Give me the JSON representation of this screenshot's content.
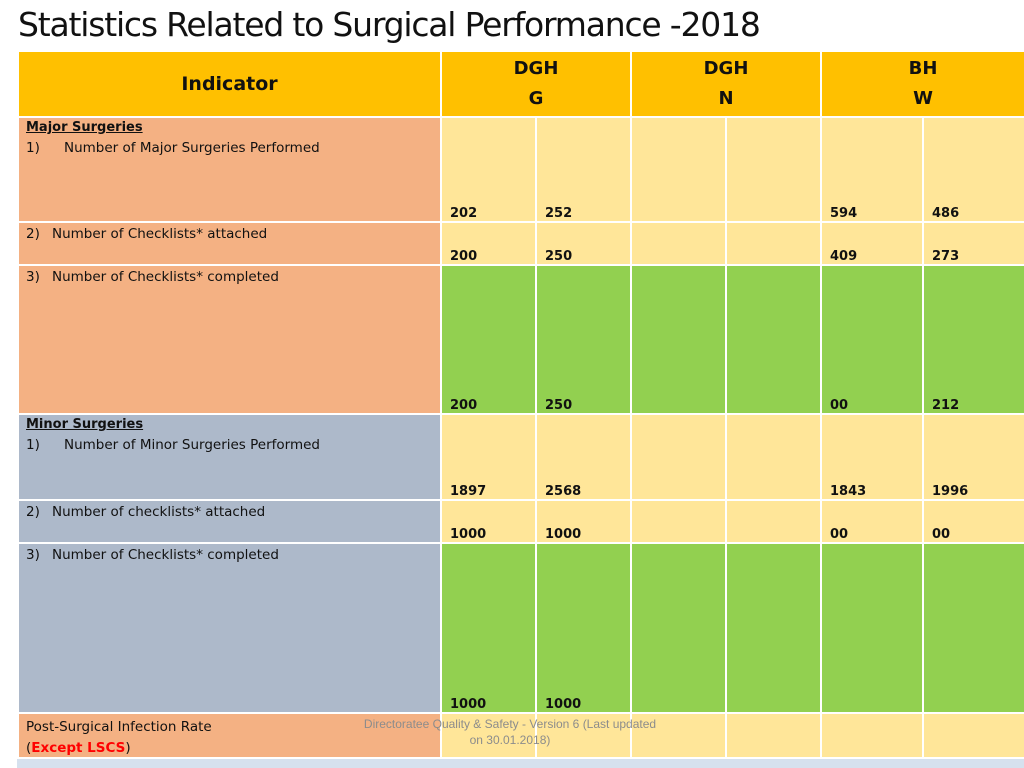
{
  "title": "Statistics Related to Surgical Performance -2018",
  "table": {
    "indicator_header": "Indicator",
    "columns": [
      {
        "line1": "DGH",
        "line2": "G"
      },
      {
        "line1": "DGH",
        "line2": "N"
      },
      {
        "line1": "BH",
        "line2": "W"
      }
    ],
    "major": {
      "section_title": "Major Surgeries",
      "row1": {
        "num": "1)",
        "label": "Number of Major Surgeries Performed",
        "values": [
          "202",
          "252",
          "",
          "",
          "594",
          "486"
        ]
      },
      "row2": {
        "num": "2)",
        "label": "Number of Checklists* attached",
        "values": [
          "200",
          "250",
          "",
          "",
          "409",
          "273"
        ]
      },
      "row3": {
        "num": "3)",
        "label": "Number of Checklists* completed",
        "values": [
          "200",
          "250",
          "",
          "",
          "00",
          "212"
        ]
      }
    },
    "minor": {
      "section_title": "Minor Surgeries",
      "row1": {
        "num": "1)",
        "label": "Number of Minor Surgeries Performed",
        "values": [
          "1897",
          "2568",
          "",
          "",
          "1843",
          "1996"
        ]
      },
      "row2": {
        "num": "2)",
        "label": "Number of checklists* attached",
        "values": [
          "1000",
          "1000",
          "",
          "",
          "00",
          "00"
        ]
      },
      "row3": {
        "num": "3)",
        "label": "Number of Checklists* completed",
        "values": [
          "1000",
          "1000",
          "",
          "",
          "",
          ""
        ]
      }
    },
    "infection": {
      "label": "Post-Surgical Infection Rate",
      "open_paren": "(",
      "except_text": "Except LSCS",
      "close_paren": ")"
    }
  },
  "footer": {
    "line1": "Directoratee Quality & Safety - Version 6 (Last updated",
    "line2": "on 30.01.2018)"
  },
  "colors": {
    "header": "#ffc000",
    "major_indicator": "#f4b183",
    "minor_indicator": "#adb9ca",
    "value_cell": "#ffe699",
    "completed_cell": "#92d050",
    "except_text": "#ff0000"
  }
}
